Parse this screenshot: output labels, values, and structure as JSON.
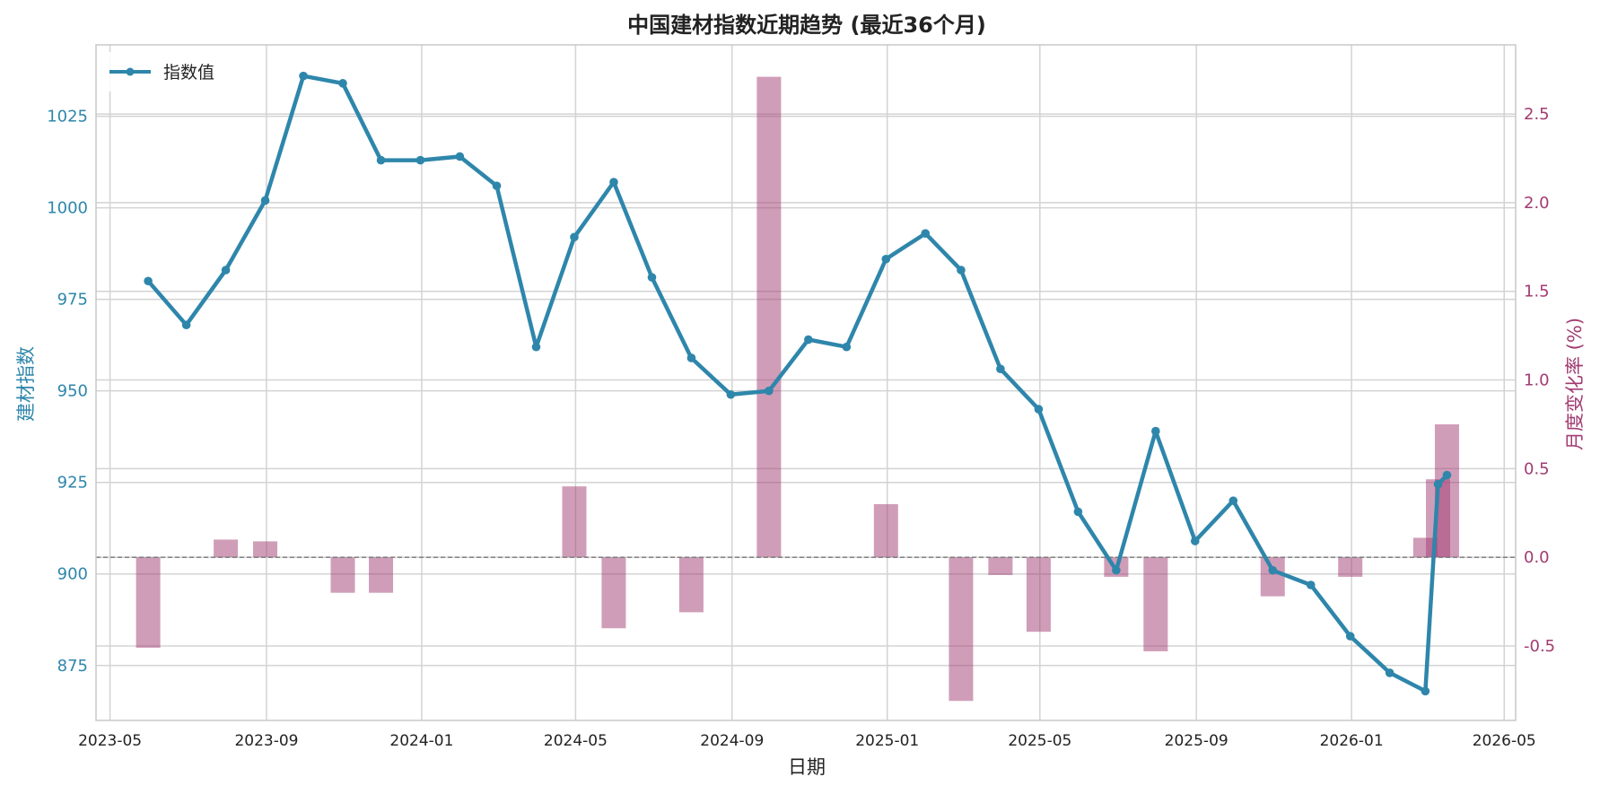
{
  "chart_data": {
    "type": "line",
    "title": "中国建材指数近期趋势 (最近36个月)",
    "xlabel": "日期",
    "ylabel": "建材指数",
    "ylabel_right": "月度变化率 (%)",
    "legend": {
      "placement": "top-left",
      "entries": [
        "指数值"
      ]
    },
    "grid": true,
    "x_ticks": [
      "2023-05",
      "2023-09",
      "2024-01",
      "2024-05",
      "2024-09",
      "2025-01",
      "2025-05",
      "2025-09",
      "2026-01",
      "2026-05"
    ],
    "y_ticks": [
      "875",
      "900",
      "925",
      "950",
      "975",
      "1000",
      "1025"
    ],
    "y2_ticks": [
      "-0.5",
      "0.0",
      "0.5",
      "1.0",
      "1.5",
      "2.0",
      "2.5"
    ],
    "xlim": [
      "2023-04-20",
      "2026-05-10"
    ],
    "ylim": [
      860,
      1044.5
    ],
    "y2lim": [
      -0.92,
      2.89
    ],
    "series": [
      {
        "name": "指数值",
        "type": "line",
        "axis": "left",
        "color": "#2E86AB",
        "x": [
          "2023-05-31",
          "2023-06-30",
          "2023-07-31",
          "2023-08-31",
          "2023-09-30",
          "2023-10-31",
          "2023-11-30",
          "2023-12-31",
          "2024-01-31",
          "2024-02-29",
          "2024-03-31",
          "2024-04-30",
          "2024-05-31",
          "2024-06-30",
          "2024-07-31",
          "2024-08-31",
          "2024-09-30",
          "2024-10-31",
          "2024-11-30",
          "2024-12-31",
          "2025-01-31",
          "2025-02-28",
          "2025-03-31",
          "2025-04-30",
          "2025-05-31",
          "2025-06-30",
          "2025-07-31",
          "2025-08-31",
          "2025-09-30",
          "2025-10-31",
          "2025-11-30",
          "2025-12-31",
          "2026-01-31",
          "2026-02-28",
          "2026-03-10",
          "2026-03-17"
        ],
        "values": [
          980,
          968,
          983,
          1002,
          1036,
          1034,
          1013,
          1013,
          1014,
          1006,
          962,
          992,
          1007,
          981,
          959,
          949,
          950,
          964,
          962,
          986,
          993,
          983,
          956,
          945,
          917,
          901,
          939,
          909,
          920,
          901,
          897,
          883,
          873,
          868,
          924.5,
          927
        ]
      },
      {
        "name": "月度变化率",
        "type": "bar",
        "axis": "right",
        "color": "#A23B72",
        "x": [
          "2023-05-31",
          "2023-07-31",
          "2023-08-31",
          "2023-10-31",
          "2023-11-30",
          "2024-04-30",
          "2024-05-31",
          "2024-07-31",
          "2024-09-30",
          "2024-12-31",
          "2025-02-28",
          "2025-03-31",
          "2025-04-30",
          "2025-06-30",
          "2025-07-31",
          "2025-10-31",
          "2025-12-31",
          "2026-02-28",
          "2026-03-10",
          "2026-03-17"
        ],
        "values": [
          -0.51,
          0.1,
          0.09,
          -0.2,
          -0.2,
          0.4,
          -0.4,
          -0.31,
          2.71,
          0.3,
          -0.81,
          -0.1,
          -0.42,
          -0.11,
          -0.53,
          -0.22,
          -0.11,
          0.11,
          0.44,
          0.75
        ]
      }
    ]
  }
}
